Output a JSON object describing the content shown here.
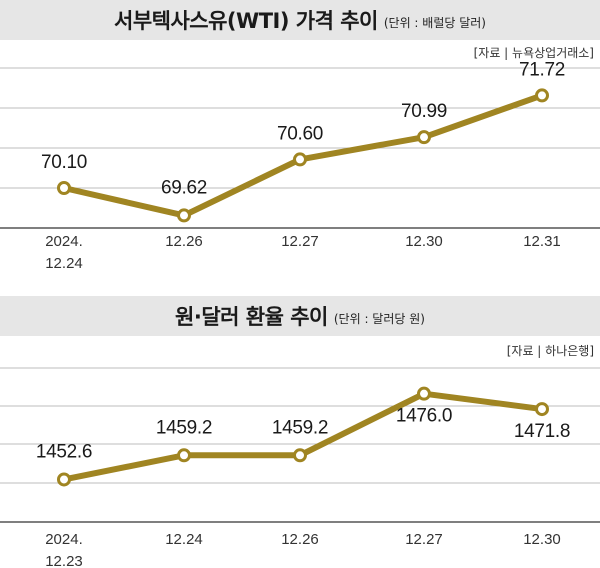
{
  "chart_data": [
    {
      "type": "line",
      "title": "서부텍사스유(WTI) 가격 추이",
      "unit": "(단위 : 배럴당 달러)",
      "source": "[자료 | 뉴욕상업거래소]",
      "categories": [
        "2024.|12.24",
        "12.26",
        "12.27",
        "12.30",
        "12.31"
      ],
      "values": [
        70.1,
        69.62,
        70.6,
        70.99,
        71.72
      ],
      "labels": [
        "70.10",
        "69.62",
        "70.60",
        "70.99",
        "71.72"
      ],
      "ylim": [
        69.4,
        72.2
      ],
      "grid": true,
      "line_color": "#a08522"
    },
    {
      "type": "line",
      "title": "원·달러 환율 추이",
      "unit": "(단위 : 달러당 원)",
      "source": "[자료 | 하나은행]",
      "categories": [
        "2024.|12.23",
        "12.24",
        "12.26",
        "12.27",
        "12.30"
      ],
      "values": [
        1452.6,
        1459.2,
        1459.2,
        1476.0,
        1471.8
      ],
      "labels": [
        "1452.6",
        "1459.2",
        "1459.2",
        "1476.0",
        "1471.8"
      ],
      "ylim": [
        1441,
        1483
      ],
      "grid": true,
      "line_color": "#a08522"
    }
  ]
}
